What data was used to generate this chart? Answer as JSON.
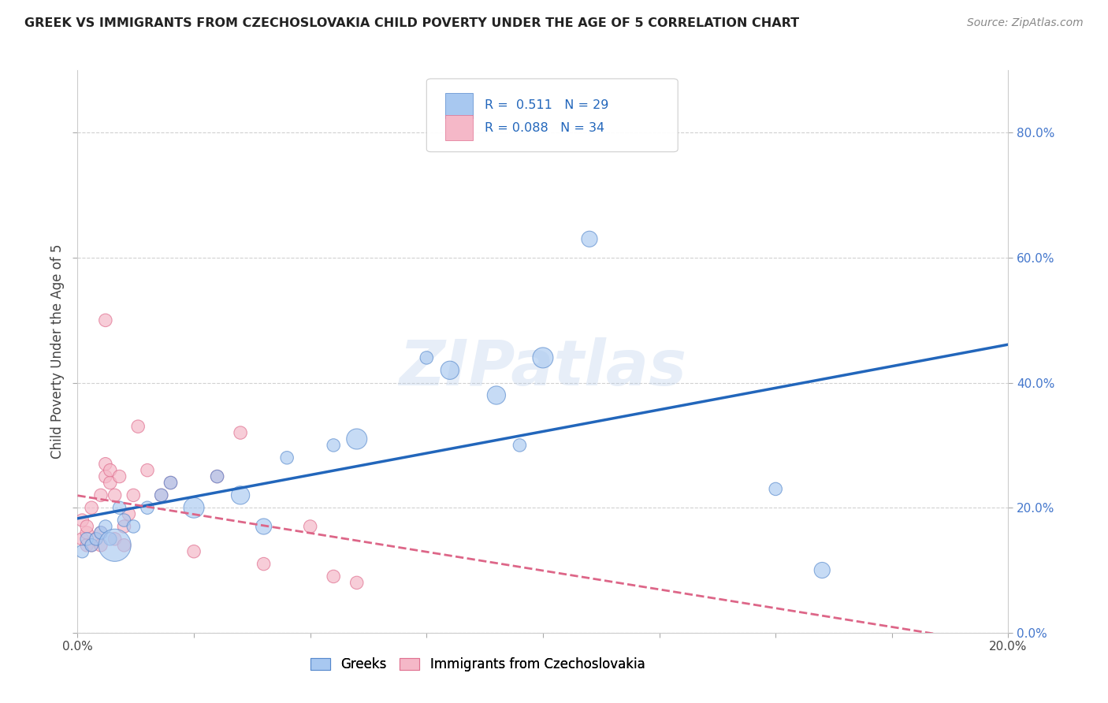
{
  "title": "GREEK VS IMMIGRANTS FROM CZECHOSLOVAKIA CHILD POVERTY UNDER THE AGE OF 5 CORRELATION CHART",
  "source": "Source: ZipAtlas.com",
  "ylabel": "Child Poverty Under the Age of 5",
  "legend_bottom": [
    "Greeks",
    "Immigrants from Czechoslovakia"
  ],
  "R_greek": 0.511,
  "N_greek": 29,
  "R_czech": 0.088,
  "N_czech": 34,
  "xlim": [
    0.0,
    0.2
  ],
  "ylim": [
    0.0,
    0.9
  ],
  "xticks": [
    0.0,
    0.025,
    0.05,
    0.075,
    0.1,
    0.125,
    0.15,
    0.175,
    0.2
  ],
  "yticks": [
    0.0,
    0.2,
    0.4,
    0.6,
    0.8
  ],
  "greek_color": "#a8c8f0",
  "czech_color": "#f5b8c8",
  "greek_edge_color": "#5588cc",
  "czech_edge_color": "#e07090",
  "greek_line_color": "#2266bb",
  "czech_line_color": "#dd6688",
  "background_color": "#ffffff",
  "grid_color": "#cccccc",
  "watermark": "ZIPatlas",
  "greek_x": [
    0.001,
    0.002,
    0.003,
    0.004,
    0.005,
    0.006,
    0.007,
    0.008,
    0.009,
    0.01,
    0.012,
    0.015,
    0.018,
    0.02,
    0.025,
    0.03,
    0.035,
    0.04,
    0.045,
    0.055,
    0.06,
    0.075,
    0.08,
    0.09,
    0.095,
    0.1,
    0.11,
    0.15,
    0.16
  ],
  "greek_y": [
    0.13,
    0.15,
    0.14,
    0.15,
    0.16,
    0.17,
    0.15,
    0.14,
    0.2,
    0.18,
    0.17,
    0.2,
    0.22,
    0.24,
    0.2,
    0.25,
    0.22,
    0.17,
    0.28,
    0.3,
    0.31,
    0.44,
    0.42,
    0.38,
    0.3,
    0.44,
    0.63,
    0.23,
    0.1
  ],
  "greek_size": [
    40,
    40,
    40,
    40,
    40,
    40,
    40,
    250,
    40,
    40,
    40,
    40,
    40,
    40,
    100,
    40,
    80,
    60,
    40,
    40,
    100,
    40,
    80,
    80,
    40,
    100,
    60,
    40,
    60
  ],
  "czech_x": [
    0.001,
    0.001,
    0.002,
    0.002,
    0.002,
    0.003,
    0.003,
    0.004,
    0.005,
    0.005,
    0.005,
    0.006,
    0.006,
    0.006,
    0.007,
    0.007,
    0.008,
    0.008,
    0.009,
    0.01,
    0.01,
    0.011,
    0.012,
    0.013,
    0.015,
    0.018,
    0.02,
    0.025,
    0.03,
    0.035,
    0.04,
    0.05,
    0.055,
    0.06
  ],
  "czech_y": [
    0.15,
    0.18,
    0.14,
    0.16,
    0.17,
    0.14,
    0.2,
    0.15,
    0.14,
    0.16,
    0.22,
    0.25,
    0.27,
    0.5,
    0.24,
    0.26,
    0.15,
    0.22,
    0.25,
    0.14,
    0.17,
    0.19,
    0.22,
    0.33,
    0.26,
    0.22,
    0.24,
    0.13,
    0.25,
    0.32,
    0.11,
    0.17,
    0.09,
    0.08
  ],
  "czech_size": [
    40,
    40,
    40,
    40,
    40,
    40,
    40,
    40,
    40,
    40,
    40,
    40,
    40,
    40,
    40,
    40,
    40,
    40,
    40,
    40,
    40,
    40,
    40,
    40,
    40,
    40,
    40,
    40,
    40,
    40,
    40,
    40,
    40,
    40
  ]
}
